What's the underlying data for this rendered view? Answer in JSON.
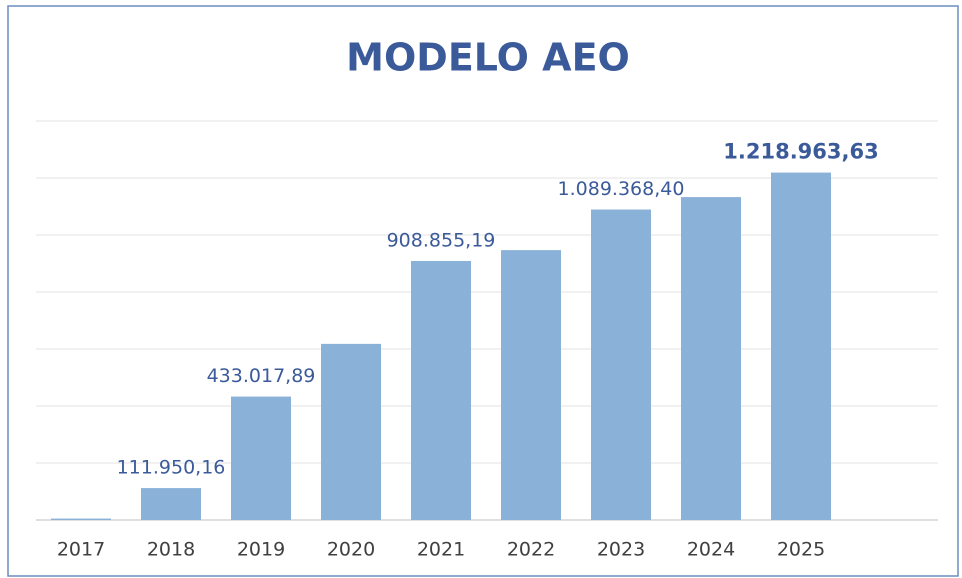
{
  "chart_data": {
    "type": "bar",
    "title": "MODELO AEO",
    "categories": [
      "2017",
      "2018",
      "2019",
      "2020",
      "2021",
      "2022",
      "2023",
      "2024",
      "2025"
    ],
    "values": [
      5000,
      111950.16,
      433017.89,
      618000,
      908855.19,
      947000,
      1089368.4,
      1133000,
      1218963.63
    ],
    "value_labels": [
      null,
      "111.950,16",
      "433.017,89",
      null,
      "908.855,19",
      null,
      "1.089.368,40",
      null,
      "1.218.963,63"
    ],
    "color": "#8ab1d8",
    "ylim": [
      0,
      1400000
    ],
    "yticks": [
      0,
      200000,
      400000,
      600000,
      800000,
      1000000,
      1200000,
      1400000
    ],
    "grid": true
  }
}
